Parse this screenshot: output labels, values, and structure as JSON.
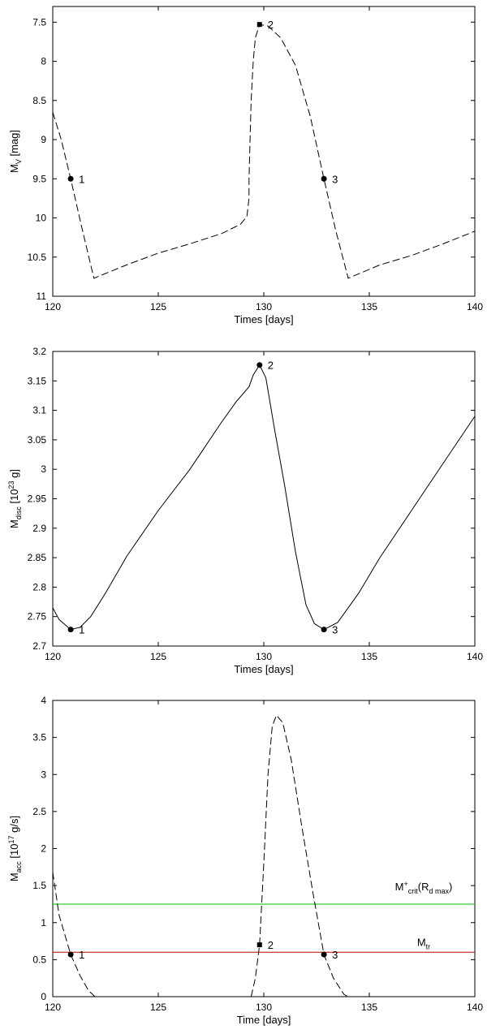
{
  "chart_data": [
    {
      "type": "line",
      "xlabel": "Times [days]",
      "ylabel": "M",
      "ylabel_sub": "V",
      "ylabel_rest": " [mag]",
      "xlim": [
        120,
        140
      ],
      "ylim": [
        7.3,
        11
      ],
      "y_inverted": true,
      "grid": false,
      "x_ticks": [
        120,
        125,
        130,
        135,
        140
      ],
      "y_ticks": [
        7.5,
        8,
        8.5,
        9,
        9.5,
        10,
        10.5,
        11
      ],
      "series": [
        {
          "color": "#000000",
          "dashed": true,
          "points": [
            [
              120.0,
              8.65
            ],
            [
              120.4,
              9.0
            ],
            [
              120.85,
              9.5
            ],
            [
              121.4,
              10.15
            ],
            [
              121.95,
              10.77
            ],
            [
              123.5,
              10.6
            ],
            [
              125.0,
              10.45
            ],
            [
              126.5,
              10.33
            ],
            [
              128.0,
              10.2
            ],
            [
              128.9,
              10.08
            ],
            [
              129.2,
              9.98
            ],
            [
              129.3,
              9.75
            ],
            [
              129.3,
              9.5
            ],
            [
              129.35,
              9.0
            ],
            [
              129.4,
              8.5
            ],
            [
              129.5,
              8.0
            ],
            [
              129.6,
              7.7
            ],
            [
              129.8,
              7.53
            ],
            [
              130.2,
              7.55
            ],
            [
              130.8,
              7.7
            ],
            [
              131.5,
              8.05
            ],
            [
              132.2,
              8.7
            ],
            [
              132.85,
              9.5
            ],
            [
              133.4,
              10.15
            ],
            [
              134.0,
              10.77
            ],
            [
              135.5,
              10.6
            ],
            [
              137.0,
              10.48
            ],
            [
              138.5,
              10.33
            ],
            [
              140.0,
              10.17
            ]
          ]
        }
      ],
      "markers": [
        {
          "x": 120.85,
          "y": 9.5,
          "label": "1"
        },
        {
          "x": 129.8,
          "y": 7.53,
          "label": "2",
          "style": "square"
        },
        {
          "x": 132.85,
          "y": 9.5,
          "label": "3"
        }
      ],
      "hlines": []
    },
    {
      "type": "line",
      "xlabel": "Times [days]",
      "ylabel": "M",
      "ylabel_sub": "disc",
      "ylabel_rest": " [10",
      "ylabel_sup": "23",
      "ylabel_end": " g]",
      "xlim": [
        120,
        140
      ],
      "ylim": [
        2.7,
        3.2
      ],
      "y_inverted": false,
      "grid": false,
      "x_ticks": [
        120,
        125,
        130,
        135,
        140
      ],
      "y_ticks": [
        2.7,
        2.75,
        2.8,
        2.85,
        2.9,
        2.95,
        3,
        3.05,
        3.1,
        3.15,
        3.2
      ],
      "series": [
        {
          "color": "#000000",
          "dashed": false,
          "points": [
            [
              120.0,
              2.765
            ],
            [
              120.3,
              2.745
            ],
            [
              120.85,
              2.728
            ],
            [
              121.3,
              2.732
            ],
            [
              121.8,
              2.75
            ],
            [
              122.5,
              2.79
            ],
            [
              123.5,
              2.852
            ],
            [
              125.0,
              2.93
            ],
            [
              126.5,
              3.0
            ],
            [
              128.0,
              3.08
            ],
            [
              128.7,
              3.115
            ],
            [
              129.3,
              3.14
            ],
            [
              129.5,
              3.16
            ],
            [
              129.8,
              3.177
            ],
            [
              130.1,
              3.155
            ],
            [
              130.5,
              3.07
            ],
            [
              131.0,
              2.97
            ],
            [
              131.5,
              2.86
            ],
            [
              132.0,
              2.77
            ],
            [
              132.4,
              2.738
            ],
            [
              132.85,
              2.728
            ],
            [
              133.5,
              2.74
            ],
            [
              134.5,
              2.79
            ],
            [
              135.5,
              2.85
            ],
            [
              137.0,
              2.93
            ],
            [
              138.5,
              3.01
            ],
            [
              140.0,
              3.09
            ]
          ]
        }
      ],
      "markers": [
        {
          "x": 120.85,
          "y": 2.728,
          "label": "1"
        },
        {
          "x": 129.8,
          "y": 3.177,
          "label": "2"
        },
        {
          "x": 132.85,
          "y": 2.728,
          "label": "3"
        }
      ],
      "hlines": []
    },
    {
      "type": "line",
      "xlabel": "Time [days]",
      "ylabel": "M",
      "ylabel_sub": "acc",
      "ylabel_rest": " [10",
      "ylabel_sup": "17",
      "ylabel_end": " g/s]",
      "xlim": [
        120,
        140
      ],
      "ylim": [
        0,
        4
      ],
      "y_inverted": false,
      "grid": false,
      "x_ticks": [
        120,
        125,
        130,
        135,
        140
      ],
      "y_ticks": [
        0,
        0.5,
        1,
        1.5,
        2,
        2.5,
        3,
        3.5,
        4
      ],
      "series": [
        {
          "color": "#000000",
          "dashed": true,
          "points": [
            [
              120.0,
              1.68
            ],
            [
              120.3,
              1.1
            ],
            [
              120.85,
              0.57
            ],
            [
              121.3,
              0.28
            ],
            [
              121.7,
              0.08
            ],
            [
              122.0,
              0.0
            ]
          ]
        },
        {
          "color": "#000000",
          "dashed": true,
          "points": [
            [
              129.4,
              0.0
            ],
            [
              129.6,
              0.25
            ],
            [
              129.8,
              0.7
            ],
            [
              130.0,
              1.8
            ],
            [
              130.2,
              3.0
            ],
            [
              130.4,
              3.65
            ],
            [
              130.6,
              3.8
            ],
            [
              130.9,
              3.7
            ],
            [
              131.3,
              3.2
            ],
            [
              131.8,
              2.3
            ],
            [
              132.3,
              1.45
            ],
            [
              132.85,
              0.57
            ],
            [
              133.3,
              0.25
            ],
            [
              133.8,
              0.03
            ],
            [
              134.0,
              0.0
            ]
          ]
        }
      ],
      "markers": [
        {
          "x": 120.85,
          "y": 0.57,
          "label": "1"
        },
        {
          "x": 129.8,
          "y": 0.7,
          "label": "2",
          "style": "square"
        },
        {
          "x": 132.85,
          "y": 0.57,
          "label": "3"
        }
      ],
      "hlines": [
        {
          "y": 1.25,
          "color": "#00c000",
          "label_main": "M",
          "label_sup": "+",
          "label_sub": "crit",
          "label_rest": "(R",
          "label_sub2": "d max",
          "label_end": ")"
        },
        {
          "y": 0.6,
          "color": "#c00000",
          "label_main": "M",
          "label_sup": "",
          "label_sub": "tr",
          "label_rest": "",
          "label_sub2": "",
          "label_end": ""
        }
      ]
    }
  ]
}
